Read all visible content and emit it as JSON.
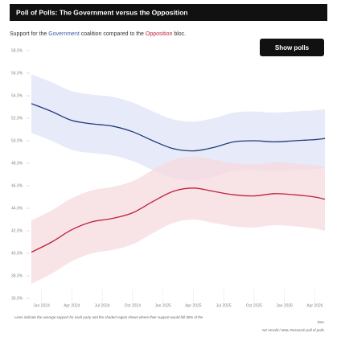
{
  "chart_data": {
    "type": "line",
    "title": "Poll of Polls: The Government versus the Opposition",
    "subtitle": [
      {
        "text": "Support for the "
      },
      {
        "text": "Government",
        "color": "#3b5bab"
      },
      {
        "text": " coalition compared to the "
      },
      {
        "text": "Opposition",
        "color": "#c0213a"
      },
      {
        "text": " bloc."
      }
    ],
    "button": "Show polls",
    "x": [
      "2023-12",
      "2024-02",
      "2024-04",
      "2024-06",
      "2024-08",
      "2024-10",
      "2024-12",
      "2025-02",
      "2025-04",
      "2025-06",
      "2025-08",
      "2025-10",
      "2025-12",
      "2026-02",
      "2026-04",
      "2026-05"
    ],
    "series": [
      {
        "name": "Government",
        "color": "#1f3a7a",
        "band_color": "#dfe3f6",
        "values": [
          53.3,
          52.6,
          51.8,
          51.5,
          51.3,
          50.8,
          50.0,
          49.3,
          49.1,
          49.4,
          49.9,
          50.0,
          49.9,
          50.0,
          50.1,
          50.2
        ],
        "upper": [
          55.9,
          55.2,
          54.4,
          54.1,
          53.9,
          53.4,
          52.6,
          51.9,
          51.7,
          52.0,
          52.5,
          52.6,
          52.5,
          52.6,
          52.7,
          52.8
        ],
        "lower": [
          50.7,
          50.0,
          49.2,
          48.9,
          48.7,
          48.2,
          47.4,
          46.7,
          46.5,
          46.8,
          47.3,
          47.4,
          47.3,
          47.4,
          47.5,
          47.6
        ]
      },
      {
        "name": "Opposition",
        "color": "#c0213a",
        "band_color": "#f5d9dd",
        "values": [
          40.1,
          41.0,
          42.1,
          42.8,
          43.1,
          43.6,
          44.6,
          45.5,
          45.8,
          45.5,
          45.2,
          45.1,
          45.3,
          45.2,
          45.0,
          44.8
        ],
        "upper": [
          42.9,
          43.8,
          44.9,
          45.6,
          45.9,
          46.4,
          47.4,
          48.3,
          48.6,
          48.3,
          48.0,
          47.9,
          48.1,
          48.0,
          47.8,
          47.6
        ],
        "lower": [
          37.3,
          38.2,
          39.3,
          40.0,
          40.3,
          40.8,
          41.8,
          42.7,
          43.0,
          42.7,
          42.4,
          42.3,
          42.5,
          42.4,
          42.2,
          42.0
        ]
      }
    ],
    "xlim": [
      "2023-12",
      "2026-05"
    ],
    "xticks": [
      {
        "value": "2024-01",
        "label": "Jan 2024"
      },
      {
        "value": "2024-04",
        "label": "Apr 2024"
      },
      {
        "value": "2024-07",
        "label": "Jul 2024"
      },
      {
        "value": "2024-10",
        "label": "Oct 2024"
      },
      {
        "value": "2025-01",
        "label": "Jan 2025"
      },
      {
        "value": "2025-04",
        "label": "Apr 2025"
      },
      {
        "value": "2025-07",
        "label": "Jul 2025"
      },
      {
        "value": "2025-10",
        "label": "Oct 2025"
      },
      {
        "value": "2026-01",
        "label": "Jan 2026"
      },
      {
        "value": "2026-04",
        "label": "Apr 2026"
      }
    ],
    "ylim": [
      36,
      58
    ],
    "yticks": [
      {
        "value": 58,
        "label": "58.0%"
      },
      {
        "value": 56,
        "label": "56.0%"
      },
      {
        "value": 54,
        "label": "54.0%"
      },
      {
        "value": 52,
        "label": "52.0%"
      },
      {
        "value": 50,
        "label": "50.0%"
      },
      {
        "value": 48,
        "label": "48.0%"
      },
      {
        "value": 46,
        "label": "46.0%"
      },
      {
        "value": 44,
        "label": "44.0%"
      },
      {
        "value": 42,
        "label": "42.0%"
      },
      {
        "value": 40,
        "label": "40.0%"
      },
      {
        "value": 38,
        "label": "38.0%"
      },
      {
        "value": 36,
        "label": "36.0%"
      }
    ],
    "note": [
      "Lines indicate the average support for each party and the shaded region shows where their support would fall 90% of the",
      "time."
    ],
    "source": "NZ Herald / Motu Research poll of polls."
  }
}
